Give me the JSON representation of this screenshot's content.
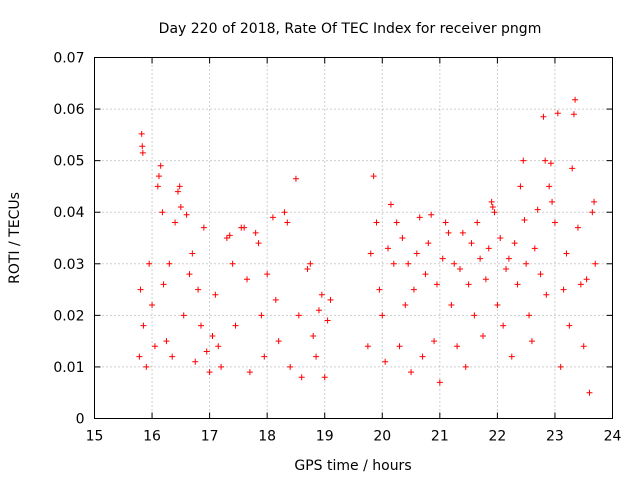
{
  "chart_data": {
    "type": "scatter",
    "title": "Day 220 of 2018, Rate Of TEC Index for receiver pngm",
    "xlabel": "GPS time / hours",
    "ylabel": "ROTI / TECUs",
    "xlim": [
      15,
      24
    ],
    "ylim": [
      0,
      0.07
    ],
    "grid": true,
    "marker": "+",
    "x_ticks": [
      15,
      16,
      17,
      18,
      19,
      20,
      21,
      22,
      23,
      24
    ],
    "x_tick_labels": [
      "15",
      "16",
      "17",
      "18",
      "19",
      "20",
      "21",
      "22",
      "23",
      "24"
    ],
    "y_ticks": [
      0,
      0.01,
      0.02,
      0.03,
      0.04,
      0.05,
      0.06,
      0.07
    ],
    "y_tick_labels": [
      "0",
      "0.01",
      "0.02",
      "0.03",
      "0.04",
      "0.05",
      "0.06",
      "0.07"
    ],
    "series": [
      {
        "name": "ROTI",
        "color": "#ff0000",
        "points": [
          [
            15.82,
            0.0552
          ],
          [
            15.83,
            0.0528
          ],
          [
            15.84,
            0.0515
          ],
          [
            15.8,
            0.025
          ],
          [
            15.85,
            0.018
          ],
          [
            15.78,
            0.012
          ],
          [
            15.9,
            0.01
          ],
          [
            15.95,
            0.03
          ],
          [
            16.0,
            0.022
          ],
          [
            16.05,
            0.014
          ],
          [
            16.1,
            0.045
          ],
          [
            16.12,
            0.047
          ],
          [
            16.15,
            0.049
          ],
          [
            16.18,
            0.04
          ],
          [
            16.2,
            0.026
          ],
          [
            16.25,
            0.015
          ],
          [
            16.3,
            0.03
          ],
          [
            16.35,
            0.012
          ],
          [
            16.4,
            0.038
          ],
          [
            16.45,
            0.044
          ],
          [
            16.48,
            0.045
          ],
          [
            16.5,
            0.041
          ],
          [
            16.55,
            0.02
          ],
          [
            16.6,
            0.0395
          ],
          [
            16.65,
            0.028
          ],
          [
            16.7,
            0.032
          ],
          [
            16.75,
            0.011
          ],
          [
            16.8,
            0.025
          ],
          [
            16.85,
            0.018
          ],
          [
            16.9,
            0.037
          ],
          [
            16.95,
            0.013
          ],
          [
            17.0,
            0.009
          ],
          [
            17.05,
            0.016
          ],
          [
            17.1,
            0.024
          ],
          [
            17.15,
            0.014
          ],
          [
            17.2,
            0.01
          ],
          [
            17.3,
            0.035
          ],
          [
            17.35,
            0.0355
          ],
          [
            17.4,
            0.03
          ],
          [
            17.45,
            0.018
          ],
          [
            17.55,
            0.037
          ],
          [
            17.6,
            0.037
          ],
          [
            17.65,
            0.027
          ],
          [
            17.7,
            0.009
          ],
          [
            17.8,
            0.036
          ],
          [
            17.85,
            0.034
          ],
          [
            17.9,
            0.02
          ],
          [
            17.95,
            0.012
          ],
          [
            18.0,
            0.028
          ],
          [
            18.1,
            0.039
          ],
          [
            18.15,
            0.023
          ],
          [
            18.2,
            0.015
          ],
          [
            18.3,
            0.04
          ],
          [
            18.35,
            0.038
          ],
          [
            18.4,
            0.01
          ],
          [
            18.5,
            0.0465
          ],
          [
            18.55,
            0.02
          ],
          [
            18.6,
            0.008
          ],
          [
            18.7,
            0.029
          ],
          [
            18.75,
            0.03
          ],
          [
            18.8,
            0.016
          ],
          [
            18.85,
            0.012
          ],
          [
            18.9,
            0.021
          ],
          [
            18.95,
            0.024
          ],
          [
            19.0,
            0.008
          ],
          [
            19.05,
            0.019
          ],
          [
            19.1,
            0.023
          ],
          [
            19.75,
            0.014
          ],
          [
            19.8,
            0.032
          ],
          [
            19.85,
            0.047
          ],
          [
            19.9,
            0.038
          ],
          [
            19.95,
            0.025
          ],
          [
            20.0,
            0.02
          ],
          [
            20.05,
            0.011
          ],
          [
            20.1,
            0.033
          ],
          [
            20.15,
            0.0415
          ],
          [
            20.2,
            0.03
          ],
          [
            20.25,
            0.038
          ],
          [
            20.3,
            0.014
          ],
          [
            20.35,
            0.035
          ],
          [
            20.4,
            0.022
          ],
          [
            20.45,
            0.03
          ],
          [
            20.5,
            0.009
          ],
          [
            20.55,
            0.025
          ],
          [
            20.6,
            0.032
          ],
          [
            20.65,
            0.039
          ],
          [
            20.7,
            0.012
          ],
          [
            20.75,
            0.028
          ],
          [
            20.8,
            0.034
          ],
          [
            20.85,
            0.0395
          ],
          [
            20.9,
            0.015
          ],
          [
            20.95,
            0.026
          ],
          [
            21.0,
            0.007
          ],
          [
            21.05,
            0.031
          ],
          [
            21.1,
            0.038
          ],
          [
            21.15,
            0.036
          ],
          [
            21.2,
            0.022
          ],
          [
            21.25,
            0.03
          ],
          [
            21.3,
            0.014
          ],
          [
            21.35,
            0.029
          ],
          [
            21.4,
            0.036
          ],
          [
            21.45,
            0.01
          ],
          [
            21.5,
            0.026
          ],
          [
            21.55,
            0.034
          ],
          [
            21.6,
            0.02
          ],
          [
            21.65,
            0.038
          ],
          [
            21.7,
            0.031
          ],
          [
            21.75,
            0.016
          ],
          [
            21.8,
            0.027
          ],
          [
            21.85,
            0.033
          ],
          [
            21.9,
            0.042
          ],
          [
            21.92,
            0.041
          ],
          [
            21.95,
            0.04
          ],
          [
            22.0,
            0.022
          ],
          [
            22.05,
            0.035
          ],
          [
            22.1,
            0.018
          ],
          [
            22.15,
            0.029
          ],
          [
            22.2,
            0.031
          ],
          [
            22.25,
            0.012
          ],
          [
            22.3,
            0.034
          ],
          [
            22.35,
            0.026
          ],
          [
            22.4,
            0.045
          ],
          [
            22.45,
            0.05
          ],
          [
            22.47,
            0.0385
          ],
          [
            22.5,
            0.03
          ],
          [
            22.55,
            0.02
          ],
          [
            22.6,
            0.015
          ],
          [
            22.65,
            0.033
          ],
          [
            22.7,
            0.0405
          ],
          [
            22.75,
            0.028
          ],
          [
            22.8,
            0.0585
          ],
          [
            22.83,
            0.05
          ],
          [
            22.85,
            0.024
          ],
          [
            22.9,
            0.045
          ],
          [
            22.93,
            0.0495
          ],
          [
            22.95,
            0.042
          ],
          [
            23.0,
            0.038
          ],
          [
            23.05,
            0.0592
          ],
          [
            23.1,
            0.01
          ],
          [
            23.15,
            0.025
          ],
          [
            23.2,
            0.032
          ],
          [
            23.25,
            0.018
          ],
          [
            23.3,
            0.0485
          ],
          [
            23.33,
            0.059
          ],
          [
            23.35,
            0.0618
          ],
          [
            23.4,
            0.037
          ],
          [
            23.45,
            0.026
          ],
          [
            23.5,
            0.014
          ],
          [
            23.55,
            0.027
          ],
          [
            23.6,
            0.005
          ],
          [
            23.65,
            0.04
          ],
          [
            23.68,
            0.042
          ],
          [
            23.7,
            0.03
          ]
        ]
      }
    ]
  }
}
